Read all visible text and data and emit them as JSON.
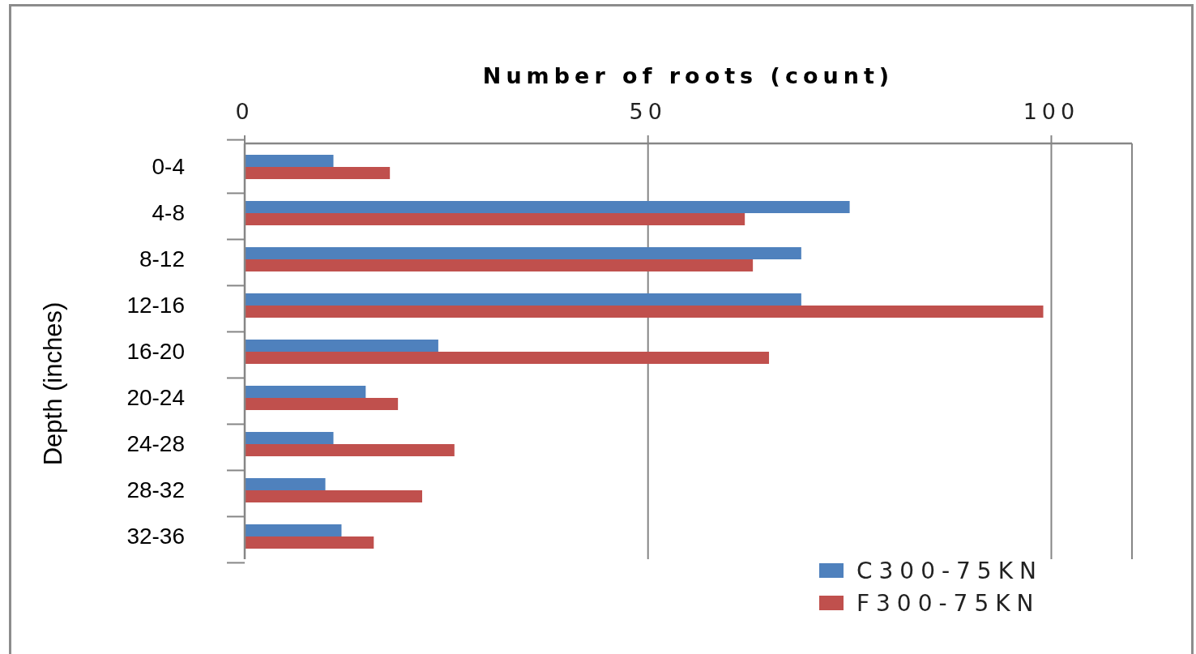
{
  "chart_data": {
    "type": "bar",
    "orientation": "horizontal",
    "xlabel": "Number of roots (count)",
    "ylabel": "Depth (inches)",
    "categories": [
      "0-4",
      "4-8",
      "8-12",
      "12-16",
      "16-20",
      "20-24",
      "24-28",
      "28-32",
      "32-36"
    ],
    "series": [
      {
        "name": "C300-75KN",
        "color": "#4f81bd",
        "values": [
          11,
          75,
          69,
          69,
          24,
          15,
          11,
          10,
          12
        ]
      },
      {
        "name": "F300-75KN",
        "color": "#c0504d",
        "values": [
          18,
          62,
          63,
          99,
          65,
          19,
          26,
          22,
          16
        ]
      }
    ],
    "xlim": [
      0,
      110
    ],
    "xticks": [
      0,
      50,
      100
    ],
    "grid": "x",
    "legend": "bottom right"
  }
}
